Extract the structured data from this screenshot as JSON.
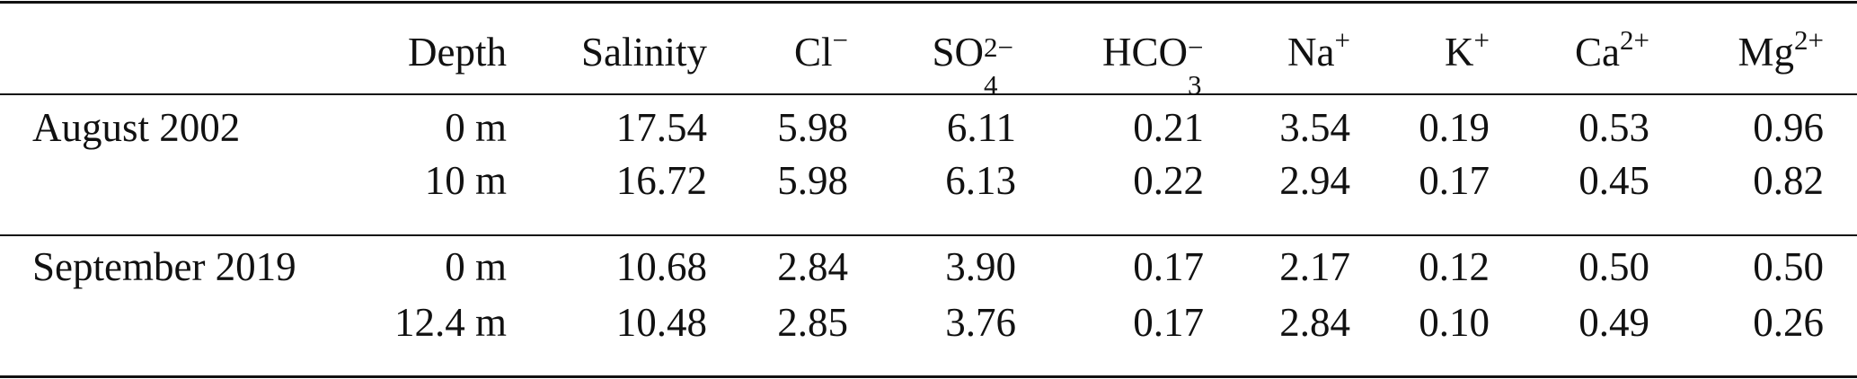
{
  "table": {
    "columns": [
      {
        "base": "Depth"
      },
      {
        "base": "Salinity"
      },
      {
        "base": "Cl",
        "sup": "−"
      },
      {
        "base": "SO",
        "sub": "4",
        "sup": "2−"
      },
      {
        "base": "HCO",
        "sub": "3",
        "sup": "−"
      },
      {
        "base": "Na",
        "sup": "+"
      },
      {
        "base": "K",
        "sup": "+"
      },
      {
        "base": "Ca",
        "sup": "2+"
      },
      {
        "base": "Mg",
        "sup": "2+"
      }
    ],
    "groups": [
      {
        "label": "August 2002",
        "rows": [
          [
            "0 m",
            "17.54",
            "5.98",
            "6.11",
            "0.21",
            "3.54",
            "0.19",
            "0.53",
            "0.96"
          ],
          [
            "10 m",
            "16.72",
            "5.98",
            "6.13",
            "0.22",
            "2.94",
            "0.17",
            "0.45",
            "0.82"
          ]
        ]
      },
      {
        "label": "September 2019",
        "rows": [
          [
            "0 m",
            "10.68",
            "2.84",
            "3.90",
            "0.17",
            "2.17",
            "0.12",
            "0.50",
            "0.50"
          ],
          [
            "12.4 m",
            "10.48",
            "2.85",
            "3.76",
            "0.17",
            "2.84",
            "0.10",
            "0.49",
            "0.26"
          ]
        ]
      }
    ]
  }
}
